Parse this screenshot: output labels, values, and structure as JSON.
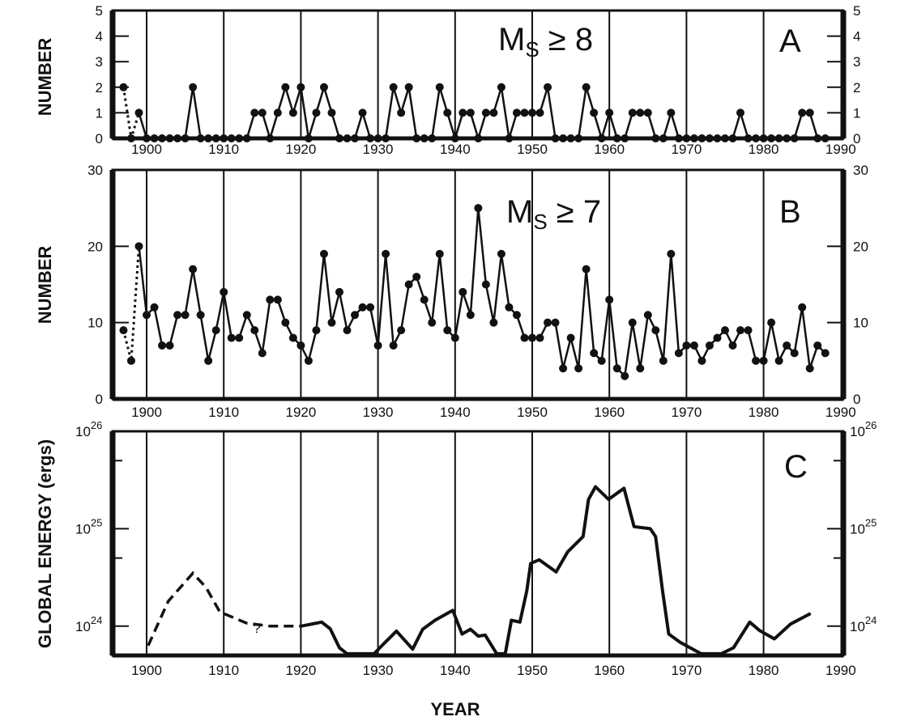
{
  "figure": {
    "xlabel": "YEAR"
  },
  "chart_data": [
    {
      "type": "line",
      "panel": "A",
      "panel_letter": "A",
      "annotation": {
        "main": "M",
        "sub": "S",
        "rest": " ≥ 8"
      },
      "ylabel": "NUMBER",
      "xlim": [
        1895.8,
        1990
      ],
      "ylim": [
        0,
        5
      ],
      "xticks": [
        1900,
        1910,
        1920,
        1930,
        1940,
        1950,
        1960,
        1970,
        1980,
        1990
      ],
      "xtick_labels": [
        "1900",
        "1910",
        "1920",
        "1930",
        "1940",
        "1950",
        "1960",
        "1970",
        "1980",
        "1990"
      ],
      "yticks": [
        0,
        1,
        2,
        3,
        4,
        5
      ],
      "ytick_labels": [
        "0",
        "1",
        "2",
        "3",
        "4",
        "5"
      ],
      "grid": "vertical lines every 10 years",
      "markers": "filled circles",
      "dotted_segment_years": [
        1897,
        1899
      ],
      "x": [
        1897,
        1898,
        1899,
        1900,
        1901,
        1902,
        1903,
        1904,
        1905,
        1906,
        1907,
        1908,
        1909,
        1910,
        1911,
        1912,
        1913,
        1914,
        1915,
        1916,
        1917,
        1918,
        1919,
        1920,
        1921,
        1922,
        1923,
        1924,
        1925,
        1926,
        1927,
        1928,
        1929,
        1930,
        1931,
        1932,
        1933,
        1934,
        1935,
        1936,
        1937,
        1938,
        1939,
        1940,
        1941,
        1942,
        1943,
        1944,
        1945,
        1946,
        1947,
        1948,
        1949,
        1950,
        1951,
        1952,
        1953,
        1954,
        1955,
        1956,
        1957,
        1958,
        1959,
        1960,
        1961,
        1962,
        1963,
        1964,
        1965,
        1966,
        1967,
        1968,
        1969,
        1970,
        1971,
        1972,
        1973,
        1974,
        1975,
        1976,
        1977,
        1978,
        1979,
        1980,
        1981,
        1982,
        1983,
        1984,
        1985,
        1986,
        1987,
        1988
      ],
      "values": [
        2,
        0,
        1,
        0,
        0,
        0,
        0,
        0,
        0,
        2,
        0,
        0,
        0,
        0,
        0,
        0,
        0,
        1,
        1,
        0,
        1,
        2,
        1,
        2,
        0,
        1,
        2,
        1,
        0,
        0,
        0,
        1,
        0,
        0,
        0,
        2,
        1,
        2,
        0,
        0,
        0,
        2,
        1,
        0,
        1,
        1,
        0,
        1,
        1,
        2,
        0,
        1,
        1,
        1,
        1,
        2,
        0,
        0,
        0,
        0,
        2,
        1,
        0,
        1,
        0,
        0,
        1,
        1,
        1,
        0,
        0,
        1,
        0,
        0,
        0,
        0,
        0,
        0,
        0,
        0,
        1,
        0,
        0,
        0,
        0,
        0,
        0,
        0,
        1,
        1,
        0,
        0
      ]
    },
    {
      "type": "line",
      "panel": "B",
      "panel_letter": "B",
      "annotation": {
        "main": "M",
        "sub": "S",
        "rest": " ≥ 7"
      },
      "ylabel": "NUMBER",
      "xlim": [
        1895.8,
        1990
      ],
      "ylim": [
        0,
        30
      ],
      "xticks": [
        1900,
        1910,
        1920,
        1930,
        1940,
        1950,
        1960,
        1970,
        1980,
        1990
      ],
      "xtick_labels": [
        "1900",
        "1910",
        "1920",
        "1930",
        "1940",
        "1950",
        "1960",
        "1970",
        "1980",
        "1990"
      ],
      "yticks": [
        0,
        10,
        20,
        30
      ],
      "ytick_labels": [
        "0",
        "10",
        "20",
        "30"
      ],
      "grid": "vertical lines every 10 years",
      "markers": "filled circles",
      "dotted_segment_years": [
        1897,
        1899
      ],
      "x": [
        1897,
        1898,
        1899,
        1900,
        1901,
        1902,
        1903,
        1904,
        1905,
        1906,
        1907,
        1908,
        1909,
        1910,
        1911,
        1912,
        1913,
        1914,
        1915,
        1916,
        1917,
        1918,
        1919,
        1920,
        1921,
        1922,
        1923,
        1924,
        1925,
        1926,
        1927,
        1928,
        1929,
        1930,
        1931,
        1932,
        1933,
        1934,
        1935,
        1936,
        1937,
        1938,
        1939,
        1940,
        1941,
        1942,
        1943,
        1944,
        1945,
        1946,
        1947,
        1948,
        1949,
        1950,
        1951,
        1952,
        1953,
        1954,
        1955,
        1956,
        1957,
        1958,
        1959,
        1960,
        1961,
        1962,
        1963,
        1964,
        1965,
        1966,
        1967,
        1968,
        1969,
        1970,
        1971,
        1972,
        1973,
        1974,
        1975,
        1976,
        1977,
        1978,
        1979,
        1980,
        1981,
        1982,
        1983,
        1984,
        1985,
        1986,
        1987,
        1988
      ],
      "values": [
        9,
        5,
        20,
        11,
        12,
        7,
        7,
        11,
        11,
        17,
        11,
        5,
        9,
        14,
        8,
        8,
        11,
        9,
        6,
        13,
        13,
        10,
        8,
        7,
        5,
        9,
        19,
        10,
        14,
        9,
        11,
        12,
        12,
        7,
        19,
        7,
        9,
        15,
        16,
        13,
        10,
        19,
        9,
        8,
        14,
        11,
        25,
        15,
        10,
        19,
        12,
        11,
        8,
        8,
        8,
        10,
        10,
        4,
        8,
        4,
        17,
        6,
        5,
        13,
        4,
        3,
        10,
        4,
        11,
        9,
        5,
        19,
        6,
        7,
        7,
        5,
        7,
        8,
        9,
        7,
        9,
        9,
        5,
        5,
        10,
        5,
        7,
        6,
        12,
        4,
        7,
        6
      ]
    },
    {
      "type": "line",
      "panel": "C",
      "panel_letter": "C",
      "ylabel": "GLOBAL ENERGY (ergs)",
      "yscale": "log",
      "xlim": [
        1895.8,
        1990
      ],
      "ylim": [
        5e+23,
        1e+26
      ],
      "xticks": [
        1900,
        1910,
        1920,
        1930,
        1940,
        1950,
        1960,
        1970,
        1980,
        1990
      ],
      "xtick_labels": [
        "1900",
        "1910",
        "1920",
        "1930",
        "1940",
        "1950",
        "1960",
        "1970",
        "1980",
        "1990"
      ],
      "yticks": [
        1e+24,
        1e+25,
        1e+26
      ],
      "ytick_labels": [
        {
          "base": "10",
          "exp": "24"
        },
        {
          "base": "10",
          "exp": "25"
        },
        {
          "base": "10",
          "exp": "26"
        }
      ],
      "minor_yticks": [
        5e+24,
        5e+25
      ],
      "grid": "vertical lines every 10 years",
      "question_mark": {
        "text": "?",
        "year": 1914.3
      },
      "dashed_until_year": 1920,
      "points": [
        [
          1900.2,
          6.3e+23
        ],
        [
          1902.8,
          1.8e+24
        ],
        [
          1906,
          3.5e+24
        ],
        [
          1907.7,
          2.5e+24
        ],
        [
          1909.5,
          1.4e+24
        ],
        [
          1913,
          1.07e+24
        ],
        [
          1916,
          1e+24
        ],
        [
          1920,
          1e+24
        ],
        [
          1922.7,
          1.1e+24
        ],
        [
          1923.8,
          9.4e+23
        ],
        [
          1925,
          6e+23
        ],
        [
          1926,
          5.2e+23
        ],
        [
          1929.5,
          5.2e+23
        ],
        [
          1930.5,
          6.3e+23
        ],
        [
          1932.4,
          8.9e+23
        ],
        [
          1934.5,
          5.8e+23
        ],
        [
          1935.8,
          9.3e+23
        ],
        [
          1937.4,
          1.15e+24
        ],
        [
          1939.7,
          1.45e+24
        ],
        [
          1940.9,
          8.3e+23
        ],
        [
          1942,
          9.3e+23
        ],
        [
          1943,
          7.9e+23
        ],
        [
          1943.9,
          8.1e+23
        ],
        [
          1945.4,
          5.2e+23
        ],
        [
          1946.5,
          5.2e+23
        ],
        [
          1947.3,
          1.15e+24
        ],
        [
          1948.4,
          1.1e+24
        ],
        [
          1949.3,
          2.3e+24
        ],
        [
          1949.8,
          4.4e+24
        ],
        [
          1950.9,
          4.8e+24
        ],
        [
          1953.1,
          3.6e+24
        ],
        [
          1954.6,
          5.8e+24
        ],
        [
          1956.6,
          8.3e+24
        ],
        [
          1957.3,
          2e+25
        ],
        [
          1958.2,
          2.7e+25
        ],
        [
          1959.9,
          2e+25
        ],
        [
          1961.9,
          2.6e+25
        ],
        [
          1963.2,
          1.05e+25
        ],
        [
          1965.3,
          1e+25
        ],
        [
          1966,
          8.3e+24
        ],
        [
          1966.9,
          2.3e+24
        ],
        [
          1967.7,
          8.3e+23
        ],
        [
          1969.2,
          6.8e+23
        ],
        [
          1971.9,
          5.2e+23
        ],
        [
          1974.5,
          5.2e+23
        ],
        [
          1976.1,
          6e+23
        ],
        [
          1978.2,
          1.1e+24
        ],
        [
          1979.5,
          9e+23
        ],
        [
          1981.4,
          7.4e+23
        ],
        [
          1983.5,
          1.05e+24
        ],
        [
          1986.1,
          1.35e+24
        ]
      ]
    }
  ]
}
